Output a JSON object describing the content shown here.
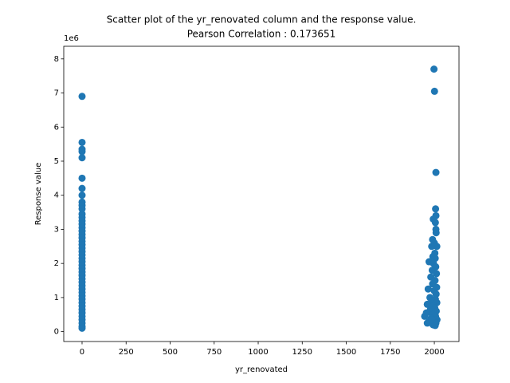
{
  "chart_data": {
    "type": "scatter",
    "title": "Scatter plot of the yr_renovated column and the response value.",
    "subtitle": "Pearson Correlation : 0.173651",
    "x_label": "yr_renovated",
    "y_label": "Response value",
    "y_offset_label": "1e6",
    "color": "#1f77b4",
    "x": [
      0,
      0,
      0,
      0,
      0,
      0,
      0,
      0,
      0,
      0,
      0,
      0,
      0,
      0,
      0,
      0,
      0,
      0,
      0,
      0,
      0,
      0,
      0,
      0,
      0,
      0,
      0,
      0,
      0,
      0,
      0,
      0,
      0,
      0,
      0,
      0,
      0,
      0,
      0,
      0,
      0,
      0,
      0,
      0,
      0,
      0,
      1998,
      2001,
      2009,
      2007,
      2009,
      1994,
      2006,
      2009,
      2010,
      1990,
      2000,
      2014,
      1985,
      2003,
      1992,
      2005,
      1970,
      1995,
      2008,
      1988,
      2012,
      1980,
      2004,
      1990,
      2013,
      1965,
      1999,
      2010,
      1975,
      2006,
      1985,
      2014,
      1960,
      1995,
      2002,
      1978,
      2011,
      1955,
      1990,
      1945,
      2007,
      1983,
      2015,
      1970,
      2000,
      1960,
      2009,
      1993,
      2005,
      1987
    ],
    "values": [
      6.9,
      5.55,
      5.35,
      5.28,
      5.1,
      4.5,
      4.2,
      4.0,
      3.8,
      3.7,
      3.6,
      3.45,
      3.35,
      3.25,
      3.15,
      3.05,
      2.95,
      2.85,
      2.75,
      2.65,
      2.55,
      2.45,
      2.35,
      2.25,
      2.15,
      2.05,
      1.95,
      1.85,
      1.75,
      1.65,
      1.55,
      1.45,
      1.35,
      1.25,
      1.15,
      1.05,
      0.95,
      0.85,
      0.75,
      0.65,
      0.55,
      0.45,
      0.35,
      0.25,
      0.15,
      0.1,
      7.7,
      7.05,
      4.67,
      3.6,
      3.4,
      3.3,
      3.2,
      3.0,
      2.9,
      2.7,
      2.6,
      2.5,
      2.5,
      2.3,
      2.2,
      2.15,
      2.05,
      2.0,
      1.9,
      1.8,
      1.7,
      1.6,
      1.5,
      1.4,
      1.3,
      1.25,
      1.2,
      1.1,
      1.0,
      0.95,
      0.9,
      0.85,
      0.8,
      0.75,
      0.7,
      0.65,
      0.6,
      0.55,
      0.5,
      0.45,
      0.45,
      0.4,
      0.35,
      0.3,
      0.3,
      0.25,
      0.25,
      0.2,
      0.18,
      0.35
    ],
    "xlim": [
      -104,
      2140
    ],
    "ylim": [
      -0.29,
      8.37
    ],
    "xticks": [
      0,
      250,
      500,
      750,
      1000,
      1250,
      1500,
      1750,
      2000
    ],
    "yticks": [
      0,
      1,
      2,
      3,
      4,
      5,
      6,
      7,
      8
    ]
  }
}
